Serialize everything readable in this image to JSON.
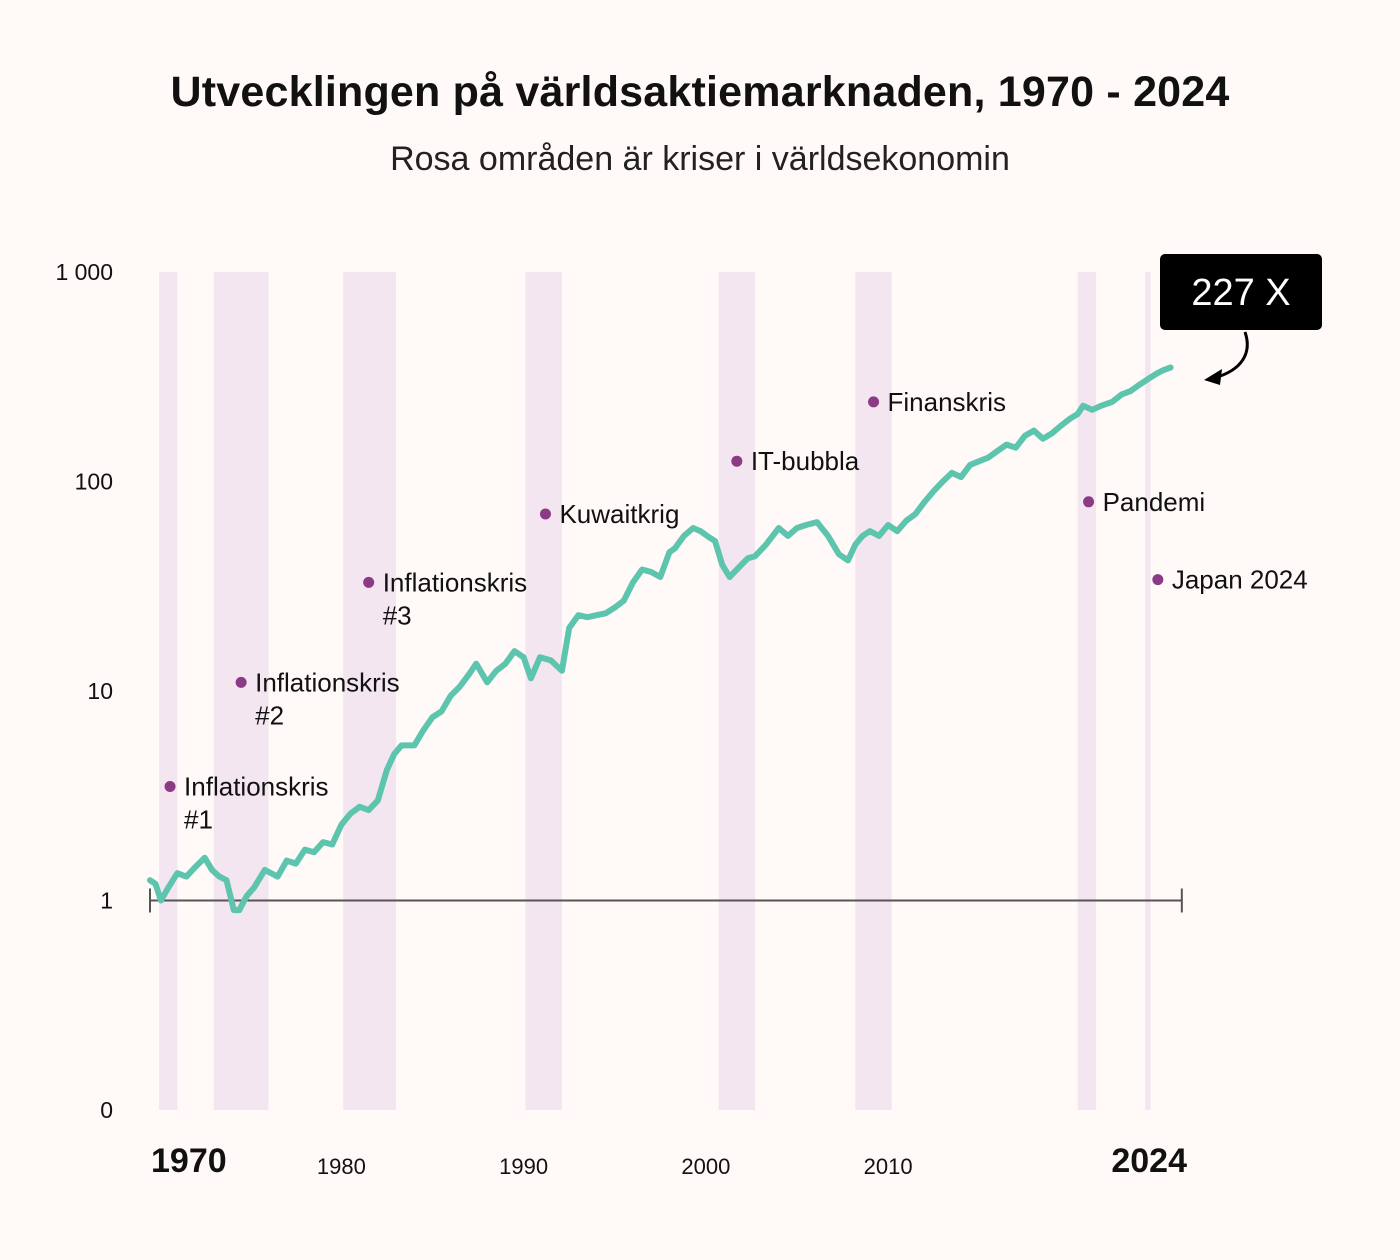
{
  "title": "Utvecklingen på världsaktiemarknaden, 1970 - 2024",
  "subtitle": "Rosa områden är kriser i världsekonomin",
  "callout": "227 X",
  "colors": {
    "line": "#5dc4ad",
    "crisis_band": "#f3e6f0",
    "crisis_dot": "#8b3a85",
    "background": "#fff9f7",
    "axis": "#555555"
  },
  "chart_data": {
    "type": "line",
    "title": "Utvecklingen på världsaktiemarknaden, 1970 - 2024",
    "subtitle": "Rosa områden är kriser i världsekonomin",
    "y_scale": "log",
    "ylim": [
      0.1,
      1000
    ],
    "xlim": [
      1970,
      2027
    ],
    "grid": false,
    "y_ticks": [
      {
        "value": 1000,
        "label": "1 000"
      },
      {
        "value": 100,
        "label": "100"
      },
      {
        "value": 10,
        "label": "10"
      },
      {
        "value": 1,
        "label": "1"
      },
      {
        "value": 0.1,
        "label": "0"
      }
    ],
    "x_ticks": [
      {
        "value": 1970,
        "label": "1970",
        "style": "big"
      },
      {
        "value": 1980,
        "label": "1980",
        "style": "small"
      },
      {
        "value": 1990,
        "label": "1990",
        "style": "small"
      },
      {
        "value": 2000,
        "label": "2000",
        "style": "small"
      },
      {
        "value": 2010,
        "label": "2010",
        "style": "small"
      },
      {
        "value": 2024,
        "label": "2024",
        "style": "big"
      }
    ],
    "baseline": {
      "value": 1,
      "x_start": 1970,
      "x_end": 2027
    },
    "crisis_periods": [
      {
        "start": 1970.5,
        "end": 1971.5
      },
      {
        "start": 1973.5,
        "end": 1976.5
      },
      {
        "start": 1980.6,
        "end": 1983.5
      },
      {
        "start": 1990.6,
        "end": 1992.6
      },
      {
        "start": 2001.2,
        "end": 2003.2
      },
      {
        "start": 2008.7,
        "end": 2010.7
      },
      {
        "start": 2020.9,
        "end": 2021.9
      },
      {
        "start": 2024.6,
        "end": 2024.9
      }
    ],
    "annotations": [
      {
        "label": "Inflationskris",
        "label2": "#1",
        "x": 1971.1,
        "y": 3.5
      },
      {
        "label": "Inflationskris",
        "label2": "#2",
        "x": 1975.0,
        "y": 11
      },
      {
        "label": "Inflationskris",
        "label2": "#3",
        "x": 1982.0,
        "y": 33
      },
      {
        "label": "Kuwaitkrig",
        "label2": "",
        "x": 1991.7,
        "y": 70
      },
      {
        "label": "IT-bubbla",
        "label2": "",
        "x": 2002.2,
        "y": 125
      },
      {
        "label": "Finanskris",
        "label2": "",
        "x": 2009.7,
        "y": 240
      },
      {
        "label": "Pandemi",
        "label2": "",
        "x": 2021.5,
        "y": 80
      },
      {
        "label": "Japan 2024",
        "label2": "",
        "x": 2025.3,
        "y": 34
      }
    ],
    "series": [
      {
        "x": [
          1970.0,
          1970.3,
          1970.6,
          1971.0,
          1971.5,
          1972.0,
          1972.5,
          1973.0,
          1973.4,
          1973.8,
          1974.2,
          1974.6,
          1974.9,
          1975.3,
          1975.7,
          1976.3,
          1977.0,
          1977.5,
          1978.0,
          1978.5,
          1979.0,
          1979.5,
          1980.0,
          1980.5,
          1981.0,
          1981.5,
          1982.0,
          1982.5,
          1983.0,
          1983.4,
          1983.8,
          1984.5,
          1985.0,
          1985.5,
          1986.0,
          1986.5,
          1987.0,
          1987.5,
          1987.9,
          1988.5,
          1989.0,
          1989.5,
          1990.0,
          1990.5,
          1990.9,
          1991.4,
          1992.0,
          1992.6,
          1993.0,
          1993.5,
          1994.0,
          1994.5,
          1995.0,
          1995.5,
          1996.0,
          1996.5,
          1997.0,
          1997.5,
          1998.0,
          1998.5,
          1998.8,
          1999.3,
          1999.8,
          2000.2,
          2000.7,
          2001.0,
          2001.4,
          2001.8,
          2002.2,
          2002.8,
          2003.2,
          2003.8,
          2004.5,
          2005.0,
          2005.5,
          2006.0,
          2006.6,
          2007.2,
          2007.8,
          2008.3,
          2008.7,
          2009.1,
          2009.5,
          2010.0,
          2010.5,
          2011.0,
          2011.5,
          2012.0,
          2012.5,
          2013.0,
          2013.5,
          2014.0,
          2014.5,
          2015.0,
          2015.5,
          2016.0,
          2016.5,
          2017.0,
          2017.5,
          2018.0,
          2018.5,
          2019.0,
          2019.5,
          2020.0,
          2020.5,
          2020.9,
          2021.2,
          2021.7,
          2022.2,
          2022.8,
          2023.3,
          2023.8,
          2024.3,
          2024.8,
          2025.3,
          2025.6,
          2026.0
        ],
        "y": [
          1.25,
          1.2,
          1.0,
          1.15,
          1.35,
          1.3,
          1.45,
          1.6,
          1.4,
          1.3,
          1.25,
          0.9,
          0.9,
          1.05,
          1.15,
          1.4,
          1.3,
          1.55,
          1.5,
          1.75,
          1.7,
          1.9,
          1.85,
          2.3,
          2.6,
          2.8,
          2.7,
          3.0,
          4.2,
          5.0,
          5.5,
          5.5,
          6.5,
          7.5,
          8.0,
          9.5,
          10.5,
          12.0,
          13.5,
          11.0,
          12.5,
          13.5,
          15.5,
          14.5,
          11.5,
          14.5,
          14.0,
          12.5,
          20.0,
          23.0,
          22.5,
          23.0,
          23.5,
          25.0,
          27.0,
          33.0,
          38.0,
          37.0,
          35.0,
          46.0,
          48.0,
          55.0,
          60.0,
          58.0,
          54.0,
          52.0,
          40.0,
          35.0,
          38.0,
          43.0,
          44.0,
          50.0,
          60.0,
          55.0,
          60.0,
          62.0,
          64.0,
          55.0,
          45.0,
          42.0,
          50.0,
          55.0,
          58.0,
          55.0,
          62.0,
          58.0,
          65.0,
          70.0,
          80.0,
          90.0,
          100.0,
          110.0,
          105.0,
          120.0,
          125.0,
          130.0,
          140.0,
          150.0,
          145.0,
          165.0,
          175.0,
          160.0,
          170.0,
          185.0,
          200.0,
          210.0,
          230.0,
          220.0,
          230.0,
          240.0,
          260.0,
          270.0,
          290.0,
          310.0,
          330.0,
          340.0,
          350.0
        ]
      }
    ]
  }
}
